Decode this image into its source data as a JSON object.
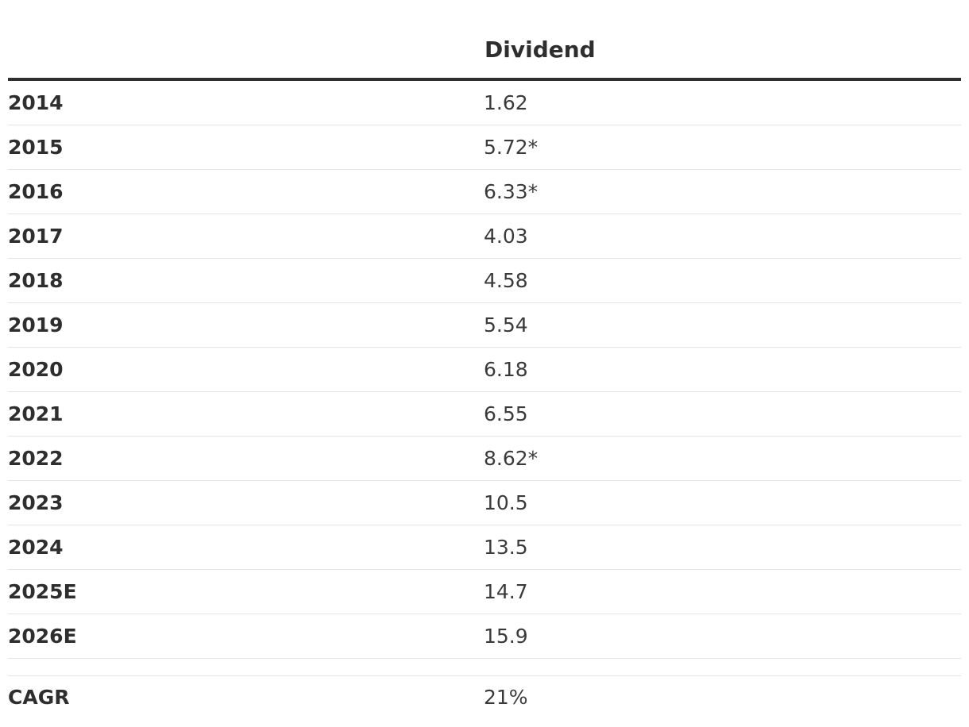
{
  "table": {
    "header": {
      "value_column": "Dividend"
    },
    "rows": [
      {
        "year": "2014",
        "dividend": "1.62"
      },
      {
        "year": "2015",
        "dividend": "5.72*"
      },
      {
        "year": "2016",
        "dividend": "6.33*"
      },
      {
        "year": "2017",
        "dividend": "4.03"
      },
      {
        "year": "2018",
        "dividend": "4.58"
      },
      {
        "year": "2019",
        "dividend": "5.54"
      },
      {
        "year": "2020",
        "dividend": "6.18"
      },
      {
        "year": "2021",
        "dividend": "6.55"
      },
      {
        "year": "2022",
        "dividend": "8.62*"
      },
      {
        "year": "2023",
        "dividend": "10.5"
      },
      {
        "year": "2024",
        "dividend": "13.5"
      },
      {
        "year": "2025E",
        "dividend": "14.7"
      },
      {
        "year": "2026E",
        "dividend": "15.9"
      }
    ],
    "summary": {
      "label": "CAGR",
      "value": "21%"
    }
  }
}
